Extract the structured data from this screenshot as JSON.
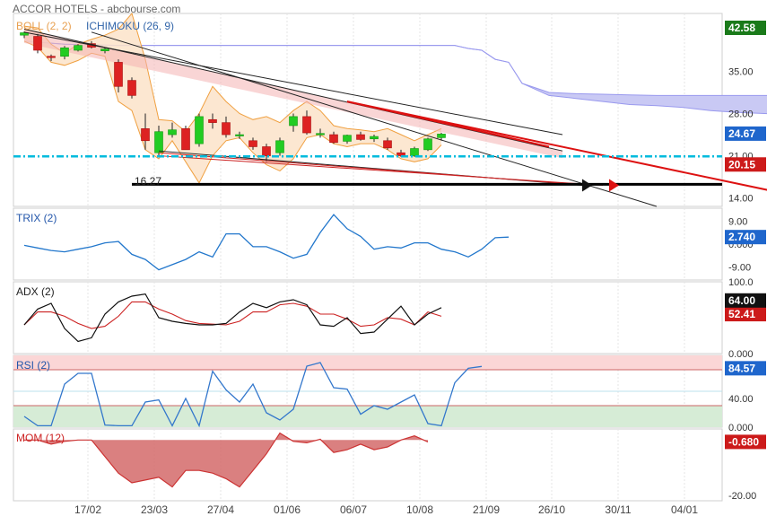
{
  "header": {
    "title": "ACCOR HOTELS - abcbourse.com"
  },
  "colors": {
    "up": "#22cc22",
    "down": "#dd2222",
    "boll": "#f0a040",
    "boll_fill": "#fbe3c9",
    "cloud": "#9999ee",
    "trix": "#2277cc",
    "adx": "#111111",
    "adx2": "#cc2222",
    "rsi": "#3377cc",
    "mom": "#cc3333",
    "support": "#00bbdd"
  },
  "x_axis": {
    "tick_labels": [
      "17/02",
      "23/03",
      "27/04",
      "01/06",
      "06/07",
      "10/08",
      "21/09",
      "26/10",
      "30/11",
      "04/01"
    ]
  },
  "chart_data": [
    {
      "type": "candlestick",
      "title": "ACCOR HOTELS",
      "legend": [
        "BOLL (2, 2)",
        "ICHIMOKU (26, 9)"
      ],
      "y_ticks": [
        "35.00",
        "28.00",
        "21.00",
        "14.00"
      ],
      "ylim": [
        12.6,
        44.6
      ],
      "badges": [
        {
          "text": "42.58",
          "value": 42.58,
          "bg": "#1a7a1a",
          "fg": "#ffffff"
        },
        {
          "text": "24.67",
          "value": 24.67,
          "bg": "#1f66cc",
          "fg": "#ffffff"
        },
        {
          "text": "20.15",
          "value": 20.15,
          "bg": "#cc1a1a",
          "fg": "#ffffff"
        }
      ],
      "support_value": 16.27,
      "support_label": "16.27",
      "dashed_level": 20.9,
      "candles": [
        [
          1,
          41.0,
          41.6,
          40.5,
          41.4
        ],
        [
          2,
          40.8,
          41.2,
          38.0,
          38.5
        ],
        [
          3,
          37.5,
          37.8,
          36.7,
          37.3
        ],
        [
          4,
          37.5,
          39.2,
          37.0,
          38.9
        ],
        [
          5,
          38.5,
          39.5,
          38.3,
          39.3
        ],
        [
          6,
          39.6,
          40.0,
          38.8,
          39.0
        ],
        [
          7,
          38.4,
          38.9,
          38.0,
          38.7
        ],
        [
          8,
          36.5,
          37.0,
          31.5,
          32.5
        ],
        [
          9,
          33.5,
          34.0,
          30.5,
          31.0
        ],
        [
          10,
          25.5,
          28.0,
          22.0,
          23.5
        ],
        [
          11,
          21.5,
          26.0,
          21.0,
          25.0
        ],
        [
          12,
          24.5,
          26.5,
          24.0,
          25.3
        ],
        [
          13,
          25.5,
          26.0,
          22.0,
          22.0
        ],
        [
          14,
          23.0,
          28.0,
          22.5,
          27.5
        ],
        [
          15,
          27.0,
          28.0,
          25.5,
          26.5
        ],
        [
          16,
          26.5,
          27.5,
          24.0,
          24.5
        ],
        [
          17,
          24.5,
          25.0,
          23.8,
          24.5
        ],
        [
          18,
          23.5,
          24.0,
          22.0,
          22.5
        ],
        [
          19,
          22.5,
          23.0,
          20.0,
          21.0
        ],
        [
          20,
          21.5,
          24.0,
          21.0,
          23.5
        ],
        [
          21,
          26.0,
          28.0,
          25.0,
          27.5
        ],
        [
          22,
          27.5,
          28.5,
          24.5,
          24.8
        ],
        [
          23,
          24.5,
          25.5,
          24.0,
          24.7
        ],
        [
          24,
          24.5,
          25.0,
          23.0,
          23.2
        ],
        [
          25,
          23.4,
          24.5,
          23.0,
          24.4
        ],
        [
          26,
          24.5,
          25.0,
          23.5,
          23.7
        ],
        [
          27,
          23.8,
          24.5,
          23.3,
          24.2
        ],
        [
          28,
          23.5,
          24.0,
          22.0,
          22.3
        ],
        [
          29,
          21.5,
          22.0,
          20.8,
          21.0
        ],
        [
          30,
          21.0,
          22.5,
          20.8,
          22.2
        ],
        [
          31,
          22.0,
          24.0,
          21.8,
          23.8
        ],
        [
          32,
          24.0,
          24.8,
          23.5,
          24.6
        ]
      ],
      "bollinger": {
        "upper": [
          42.5,
          42.2,
          39.5,
          38.0,
          39.5,
          40.3,
          41.0,
          42.0,
          44.6,
          37.0,
          27.0,
          26.8,
          25.0,
          28.0,
          32.5,
          30.0,
          28.0,
          27.0,
          27.5,
          26.5,
          28.5,
          30.0,
          28.5,
          26.0,
          25.5,
          25.3,
          25.0,
          25.5,
          24.5,
          23.5,
          24.5,
          25.5
        ],
        "lower": [
          40.0,
          39.0,
          36.5,
          36.0,
          36.8,
          38.0,
          37.5,
          30.0,
          28.5,
          22.0,
          20.5,
          23.5,
          20.0,
          16.5,
          21.0,
          23.5,
          24.0,
          21.5,
          19.5,
          18.5,
          20.5,
          24.0,
          24.5,
          23.0,
          22.5,
          23.0,
          23.0,
          22.0,
          20.5,
          20.0,
          20.5,
          22.8
        ]
      },
      "cloud": {
        "x": [
          1,
          4,
          8,
          12,
          16,
          20,
          24,
          27,
          28,
          29,
          30,
          31,
          32,
          33,
          34,
          35,
          36,
          37,
          38,
          40,
          42,
          44,
          46,
          48,
          50,
          52,
          54,
          56,
          58,
          60
        ],
        "top": [
          40.0,
          39.5,
          39.3,
          39.3,
          39.3,
          39.3,
          39.3,
          39.3,
          39.3,
          39.3,
          39.3,
          39.3,
          39.3,
          39.3,
          38.8,
          38.5,
          37.0,
          36.5,
          33.0,
          31.5,
          31.3,
          31.2,
          31.1,
          31.0,
          31.0,
          31.0,
          31.0,
          31.0,
          31.0,
          31.0
        ],
        "bottom": [
          40.0,
          39.5,
          39.3,
          39.3,
          39.3,
          39.3,
          39.3,
          39.3,
          39.3,
          39.3,
          39.3,
          39.3,
          39.3,
          39.3,
          38.8,
          38.5,
          37.0,
          36.5,
          33.0,
          31.0,
          30.5,
          30.0,
          29.5,
          29.3,
          29.0,
          28.5,
          28.2,
          28.0,
          27.8,
          27.6
        ]
      },
      "trendlines": [
        {
          "x1": 1,
          "y1": 42.0,
          "x2": 41,
          "y2": 21.8,
          "color": "#222222",
          "width": 1
        },
        {
          "x1": 1,
          "y1": 41.5,
          "x2": 41,
          "y2": 24.5,
          "color": "#222222",
          "width": 1
        },
        {
          "x1": 6,
          "y1": 41.5,
          "x2": 48,
          "y2": 12.6,
          "color": "#222222",
          "width": 1
        },
        {
          "x1": 11,
          "y1": 21.8,
          "x2": 43,
          "y2": 16.0,
          "color": "#222222",
          "width": 1
        },
        {
          "x1": 11,
          "y1": 21.5,
          "x2": 43,
          "y2": 16.1,
          "color": "#cc2222",
          "width": 1
        },
        {
          "x1": 11,
          "y1": 21.0,
          "x2": 44,
          "y2": 16.1,
          "color": "#cc2222",
          "width": 1
        },
        {
          "x1": 25,
          "y1": 30.0,
          "x2": 58,
          "y2": 14.5,
          "color": "#dd1111",
          "width": 2
        },
        {
          "x1": 25,
          "y1": 30.0,
          "x2": 40,
          "y2": 22.5,
          "color": "#dd1111",
          "width": 2
        }
      ],
      "channel": {
        "top": [
          [
            1,
            42.0
          ],
          [
            41,
            21.8
          ]
        ],
        "bottom": [
          [
            1,
            39.7
          ],
          [
            41,
            20.6
          ]
        ]
      },
      "arrows": [
        {
          "x": 43,
          "y": 16.1,
          "color": "#111111"
        },
        {
          "x": 45,
          "y": 16.1,
          "color": "#dd1111"
        },
        {
          "x": 58,
          "y": 14.5,
          "color": "#dd1111"
        }
      ]
    },
    {
      "type": "line",
      "title": "TRIX (2)",
      "y_ticks": [
        "9.00",
        "0.000",
        "-9.00"
      ],
      "ylim": [
        -14,
        14
      ],
      "badge": {
        "text": "2.740",
        "value": 2.74,
        "bg": "#1f66cc",
        "fg": "#ffffff"
      },
      "series": [
        {
          "values": [
            -0.5,
            -1.5,
            -2.5,
            -3.0,
            -2.0,
            -1.0,
            0.5,
            1.0,
            -4.0,
            -6.0,
            -10.0,
            -8.0,
            -6.0,
            -3.0,
            -5.0,
            4.0,
            4.0,
            -1.0,
            -1.0,
            -3.0,
            -5.5,
            -4.0,
            4.5,
            11.5,
            6.0,
            3.0,
            -2.0,
            -1.0,
            -1.5,
            0.5,
            0.5,
            -2.0,
            -3.0,
            -5.0,
            -2.0,
            2.5,
            2.74
          ]
        }
      ]
    },
    {
      "type": "line",
      "title": "ADX (2)",
      "y_ticks": [
        "100.0",
        "0.000"
      ],
      "ylim": [
        0,
        100
      ],
      "badges": [
        {
          "text": "64.00",
          "value": 64.0,
          "bg": "#111111",
          "fg": "#ffffff"
        },
        {
          "text": "52.41",
          "value": 52.41,
          "bg": "#cc1a1a",
          "fg": "#ffffff"
        }
      ],
      "series": [
        {
          "values": [
            40,
            62,
            70,
            35,
            17,
            22,
            55,
            72,
            80,
            83,
            50,
            45,
            42,
            40,
            40,
            42,
            58,
            70,
            64,
            72,
            75,
            68,
            40,
            38,
            50,
            28,
            30,
            48,
            66,
            40,
            55,
            64
          ]
        },
        {
          "values": [
            40,
            58,
            58,
            52,
            42,
            35,
            38,
            52,
            72,
            72,
            62,
            55,
            46,
            42,
            41,
            40,
            45,
            58,
            58,
            68,
            70,
            66,
            55,
            55,
            48,
            38,
            40,
            50,
            48,
            40,
            58,
            52
          ]
        }
      ]
    },
    {
      "type": "line",
      "title": "RSI (2)",
      "y_ticks": [
        "40.00",
        "0.000"
      ],
      "ylim": [
        0,
        100
      ],
      "reference_lines": [
        80,
        50,
        30
      ],
      "badge": {
        "text": "84.57",
        "value": 84.57,
        "bg": "#1f66cc",
        "fg": "#ffffff"
      },
      "series": [
        {
          "values": [
            15,
            2,
            2,
            60,
            75,
            75,
            3,
            2,
            2,
            35,
            38,
            2,
            40,
            2,
            78,
            52,
            35,
            60,
            20,
            10,
            25,
            85,
            90,
            55,
            53,
            18,
            30,
            25,
            35,
            45,
            5,
            2,
            62,
            82,
            84.57
          ]
        }
      ]
    },
    {
      "type": "area",
      "title": "MOM (12)",
      "y_ticks": [
        "-20.00"
      ],
      "ylim": [
        -22,
        4
      ],
      "badge": {
        "text": "-0.680",
        "value": -0.68,
        "bg": "#cc1a1a",
        "fg": "#ffffff"
      },
      "series": [
        {
          "values": [
            0,
            0,
            -1.5,
            -0.5,
            0,
            0,
            -6,
            -12,
            -15.5,
            -14.5,
            -13.5,
            -17,
            -11,
            -11,
            -12,
            -14,
            -17,
            -11,
            -5,
            2.5,
            -0.5,
            -1.0,
            0.3,
            -4.5,
            -3.5,
            -1.5,
            -3.5,
            -2.5,
            0,
            1.5,
            -0.68
          ]
        }
      ]
    }
  ]
}
